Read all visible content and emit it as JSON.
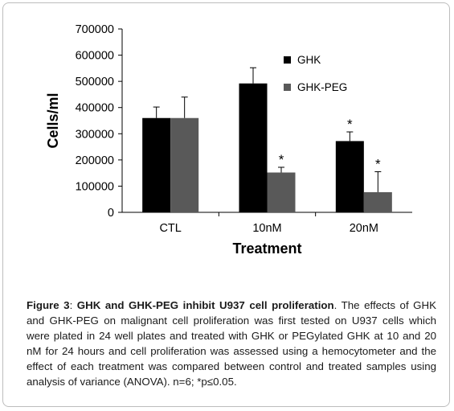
{
  "chart_data": {
    "type": "bar",
    "categories": [
      "CTL",
      "10nM",
      "20nM"
    ],
    "series": [
      {
        "name": "GHK",
        "color": "#000000",
        "values": [
          360000,
          492000,
          272000
        ],
        "error": [
          42000,
          60000,
          35000
        ],
        "significance": [
          "",
          "",
          "*"
        ]
      },
      {
        "name": "GHK-PEG",
        "color": "#595959",
        "values": [
          360000,
          152000,
          77000
        ],
        "error": [
          80000,
          20000,
          78000
        ],
        "significance": [
          "",
          "*",
          "*"
        ]
      }
    ],
    "xlabel": "Treatment",
    "ylabel": "Cells/ml",
    "ylim": [
      0,
      700000
    ],
    "yticks": [
      "0",
      "100000",
      "200000",
      "300000",
      "400000",
      "500000",
      "600000",
      "700000"
    ],
    "legend_position": "top-right"
  },
  "caption": {
    "figure_label": "Figure 3",
    "title": "GHK and GHK-PEG inhibit U937 cell proliferation",
    "body": "The effects of GHK and GHK-PEG on malignant cell proliferation was first tested on U937 cells which were plated in 24 well plates and treated with GHK or PEGylated GHK at 10 and 20 nM for 24 hours and cell proliferation was assessed using a hemocytometer and the effect of each treatment was compared between control and treated samples using analysis of variance (ANOVA). n=6; *p≤0.05."
  }
}
